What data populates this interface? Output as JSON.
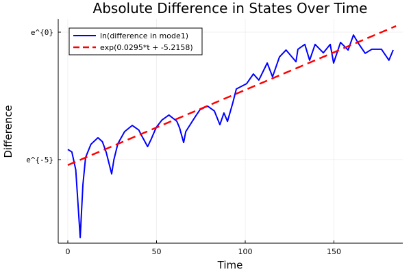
{
  "chart_data": {
    "type": "line",
    "title": "Absolute Difference in States Over Time",
    "xlabel": "Time",
    "ylabel": "Difference",
    "y_scale": "log (natural)",
    "xlim": [
      -5.4,
      188.8
    ],
    "ylim_ln": [
      -8.28,
      0.51
    ],
    "x_ticks": [
      0,
      50,
      100,
      150
    ],
    "x_tick_labels": [
      "0",
      "50",
      "100",
      "150"
    ],
    "y_ticks_ln": [
      0,
      -5
    ],
    "y_tick_labels": [
      "e^{0}",
      "e^{-5}"
    ],
    "grid": true,
    "legend_position": "top-left",
    "series": [
      {
        "name": "ln(difference in mode1)",
        "color": "#0000ff",
        "style": "solid",
        "x": [
          0,
          2.3,
          4.5,
          7,
          8.5,
          10,
          13,
          17,
          19.5,
          21.6,
          24.7,
          26,
          28.2,
          32,
          36.3,
          40,
          42,
          45,
          47,
          49.8,
          53,
          57,
          61.4,
          63,
          65.3,
          66.5,
          68.7,
          72,
          74.5,
          78.8,
          82.6,
          85.7,
          88,
          90,
          93,
          95,
          100.8,
          104.6,
          107.7,
          112.4,
          115.4,
          119.3,
          123,
          128.6,
          129.7,
          133.6,
          136.3,
          139.4,
          144,
          147.9,
          149.8,
          153.7,
          158,
          161,
          163.7,
          167.6,
          171.4,
          176.8,
          181,
          183.4
        ],
        "y_ln": [
          -4.6,
          -4.7,
          -5.4,
          -8.06,
          -6.0,
          -4.92,
          -4.4,
          -4.14,
          -4.3,
          -4.7,
          -5.56,
          -5.0,
          -4.38,
          -3.9,
          -3.66,
          -3.84,
          -4.11,
          -4.49,
          -4.2,
          -3.74,
          -3.45,
          -3.25,
          -3.49,
          -3.76,
          -4.33,
          -3.9,
          -3.66,
          -3.3,
          -3.04,
          -2.9,
          -3.09,
          -3.63,
          -3.17,
          -3.5,
          -2.77,
          -2.23,
          -2.02,
          -1.64,
          -1.88,
          -1.21,
          -1.75,
          -0.97,
          -0.7,
          -1.16,
          -0.67,
          -0.48,
          -1.1,
          -0.48,
          -0.81,
          -0.48,
          -1.21,
          -0.4,
          -0.7,
          -0.11,
          -0.43,
          -0.83,
          -0.67,
          -0.67,
          -1.1,
          -0.7
        ]
      },
      {
        "name": "exp(0.0295*t + -5.2158)",
        "color": "#ff0000",
        "style": "dashed",
        "slope": 0.0295,
        "intercept": -5.2158,
        "x": [
          0,
          185
        ]
      }
    ]
  }
}
